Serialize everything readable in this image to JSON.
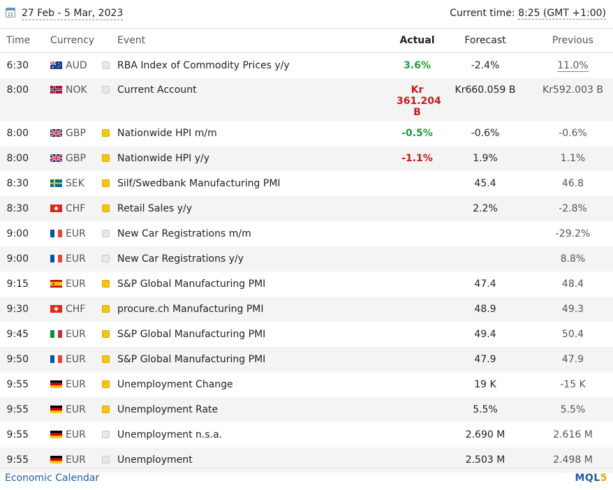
{
  "header": {
    "date_range": "27 Feb - 5 Mar, 2023",
    "current_time_label": "Current time:",
    "current_time_value": "8:25 (GMT +1:00)"
  },
  "columns": {
    "time": "Time",
    "currency": "Currency",
    "event": "Event",
    "actual": "Actual",
    "forecast": "Forecast",
    "previous": "Previous"
  },
  "rows": [
    {
      "time": "6:30",
      "currency": "AUD",
      "importance": "low",
      "event": "RBA Index of Commodity Prices y/y",
      "actual": "3.6%",
      "actual_dir": "up",
      "forecast": "-2.4%",
      "previous": "11.0%",
      "previous_revised": true
    },
    {
      "time": "8:00",
      "currency": "NOK",
      "importance": "low",
      "event": "Current Account",
      "actual_line1": "Kr",
      "actual_line2": "361.204 B",
      "actual_dir": "down",
      "forecast": "Kr660.059 B",
      "previous": "Kr592.003 B"
    },
    {
      "time": "8:00",
      "currency": "GBP",
      "importance": "medium",
      "event": "Nationwide HPI m/m",
      "actual": "-0.5%",
      "actual_dir": "up",
      "forecast": "-0.6%",
      "previous": "-0.6%"
    },
    {
      "time": "8:00",
      "currency": "GBP",
      "importance": "medium",
      "event": "Nationwide HPI y/y",
      "actual": "-1.1%",
      "actual_dir": "down",
      "forecast": "1.9%",
      "previous": "1.1%"
    },
    {
      "time": "8:30",
      "currency": "SEK",
      "importance": "medium",
      "event": "Silf/Swedbank Manufacturing PMI",
      "actual": "",
      "forecast": "45.4",
      "previous": "46.8"
    },
    {
      "time": "8:30",
      "currency": "CHF",
      "importance": "medium",
      "event": "Retail Sales y/y",
      "actual": "",
      "forecast": "2.2%",
      "previous": "-2.8%"
    },
    {
      "time": "9:00",
      "currency": "EUR",
      "importance": "low",
      "event": "New Car Registrations m/m",
      "actual": "",
      "forecast": "",
      "previous": "-29.2%"
    },
    {
      "time": "9:00",
      "currency": "EUR",
      "importance": "low",
      "event": "New Car Registrations y/y",
      "actual": "",
      "forecast": "",
      "previous": "8.8%"
    },
    {
      "time": "9:15",
      "currency": "EUR",
      "importance": "medium",
      "event": "S&P Global Manufacturing PMI",
      "actual": "",
      "forecast": "47.4",
      "previous": "48.4"
    },
    {
      "time": "9:30",
      "currency": "CHF",
      "importance": "medium",
      "event": "procure.ch Manufacturing PMI",
      "actual": "",
      "forecast": "48.9",
      "previous": "49.3"
    },
    {
      "time": "9:45",
      "currency": "EUR",
      "importance": "medium",
      "event": "S&P Global Manufacturing PMI",
      "actual": "",
      "forecast": "49.4",
      "previous": "50.4"
    },
    {
      "time": "9:50",
      "currency": "EUR",
      "importance": "medium",
      "event": "S&P Global Manufacturing PMI",
      "actual": "",
      "forecast": "47.9",
      "previous": "47.9"
    },
    {
      "time": "9:55",
      "currency": "EUR",
      "importance": "medium",
      "event": "Unemployment Change",
      "actual": "",
      "forecast": "19 K",
      "previous": "-15 K"
    },
    {
      "time": "9:55",
      "currency": "EUR",
      "importance": "medium",
      "event": "Unemployment Rate",
      "actual": "",
      "forecast": "5.5%",
      "previous": "5.5%"
    },
    {
      "time": "9:55",
      "currency": "EUR",
      "importance": "low",
      "event": "Unemployment n.s.a.",
      "actual": "",
      "forecast": "2.690 M",
      "previous": "2.616 M"
    },
    {
      "time": "9:55",
      "currency": "EUR",
      "importance": "low",
      "event": "Unemployment",
      "actual": "",
      "forecast": "2.503 M",
      "previous": "2.498 M"
    }
  ],
  "footer": {
    "title": "Economic Calendar",
    "logo_text": "MQL",
    "logo_digit": "5"
  }
}
